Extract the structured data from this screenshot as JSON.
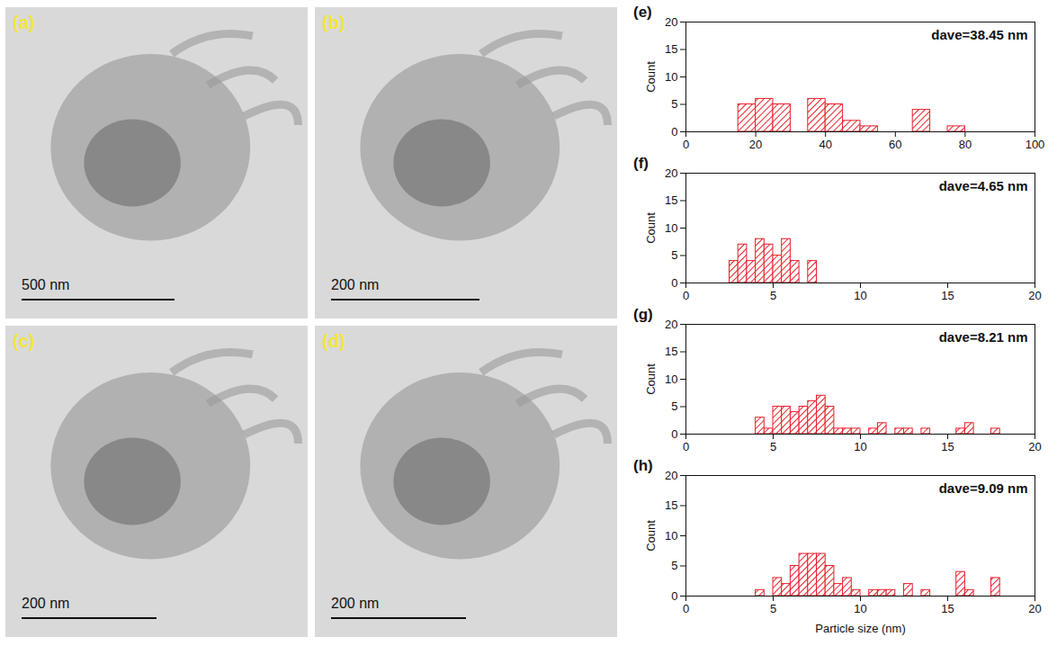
{
  "images": [
    {
      "label": "(a)",
      "scale_bar": "500 nm"
    },
    {
      "label": "(b)",
      "scale_bar": "200 nm"
    },
    {
      "label": "(c)",
      "scale_bar": "200 nm"
    },
    {
      "label": "(d)",
      "scale_bar": "200 nm"
    }
  ],
  "chart_data": [
    {
      "type": "histogram",
      "label": "(e)",
      "annotation": "dave=38.45 nm",
      "ylabel": "Count",
      "color": "#e8202a",
      "bins": [
        15,
        20,
        25,
        30,
        35,
        40,
        45,
        50,
        55,
        60,
        65,
        70,
        75,
        80
      ],
      "counts": [
        5,
        6,
        5,
        0,
        6,
        5,
        2,
        1,
        0,
        0,
        4,
        0,
        1
      ],
      "xlim": [
        0,
        100
      ],
      "xticks": [
        0,
        20,
        40,
        60,
        80,
        100
      ],
      "ylim": [
        0,
        20
      ],
      "yticks": [
        0,
        5,
        10,
        15,
        20
      ]
    },
    {
      "type": "histogram",
      "label": "(f)",
      "annotation": "dave=4.65 nm",
      "ylabel": "Count",
      "color": "#e8202a",
      "bins": [
        2.5,
        3,
        3.5,
        4,
        4.5,
        5,
        5.5,
        6,
        6.5,
        7,
        7.5
      ],
      "counts": [
        4,
        7,
        4,
        8,
        7,
        5,
        8,
        4,
        0,
        4
      ],
      "xlim": [
        0,
        20
      ],
      "xticks": [
        0,
        5,
        10,
        15,
        20
      ],
      "ylim": [
        0,
        20
      ],
      "yticks": [
        0,
        5,
        10,
        15,
        20
      ]
    },
    {
      "type": "histogram",
      "label": "(g)",
      "annotation": "dave=8.21 nm",
      "ylabel": "Count",
      "color": "#e8202a",
      "bins": [
        4,
        4.5,
        5,
        5.5,
        6,
        6.5,
        7,
        7.5,
        8,
        8.5,
        9,
        9.5,
        10,
        10.5,
        11,
        11.5,
        12,
        12.5,
        13,
        13.5,
        14,
        14.5,
        15,
        15.5,
        16,
        16.5,
        17,
        17.5,
        18
      ],
      "counts": [
        3,
        1,
        5,
        5,
        4,
        5,
        6,
        7,
        5,
        1,
        1,
        1,
        0,
        1,
        2,
        0,
        1,
        1,
        0,
        1,
        0,
        0,
        0,
        1,
        2,
        0,
        0,
        1
      ],
      "xlim": [
        0,
        20
      ],
      "xticks": [
        0,
        5,
        10,
        15,
        20
      ],
      "ylim": [
        0,
        20
      ],
      "yticks": [
        0,
        5,
        10,
        15,
        20
      ]
    },
    {
      "type": "histogram",
      "label": "(h)",
      "annotation": "dave=9.09 nm",
      "ylabel": "Count",
      "xlabel": "Particle size (nm)",
      "color": "#e8202a",
      "bins": [
        4,
        4.5,
        5,
        5.5,
        6,
        6.5,
        7,
        7.5,
        8,
        8.5,
        9,
        9.5,
        10,
        10.5,
        11,
        11.5,
        12,
        12.5,
        13,
        13.5,
        14,
        14.5,
        15,
        15.5,
        16,
        16.5,
        17,
        17.5,
        18
      ],
      "counts": [
        1,
        0,
        3,
        2,
        5,
        7,
        7,
        7,
        5,
        2,
        3,
        1,
        0,
        1,
        1,
        1,
        0,
        2,
        0,
        1,
        0,
        0,
        0,
        4,
        1,
        0,
        0,
        3
      ],
      "xlim": [
        0,
        20
      ],
      "xticks": [
        0,
        5,
        10,
        15,
        20
      ],
      "ylim": [
        0,
        20
      ],
      "yticks": [
        0,
        5,
        10,
        15,
        20
      ]
    }
  ]
}
